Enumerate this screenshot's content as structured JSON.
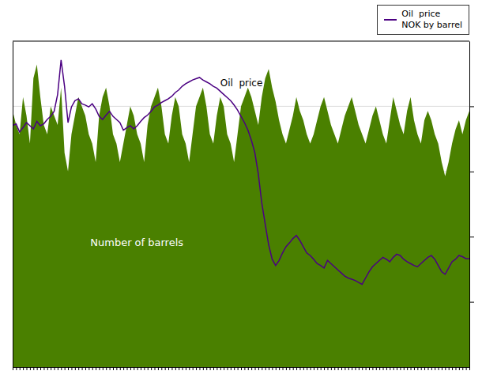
{
  "chart_data": {
    "type": "line",
    "x": [
      0,
      1,
      2,
      3,
      4,
      5,
      6,
      7,
      8,
      9,
      10,
      11,
      12,
      13,
      14,
      15,
      16,
      17,
      18,
      19,
      20,
      21,
      22,
      23,
      24,
      25,
      26,
      27,
      28,
      29,
      30,
      31,
      32,
      33,
      34,
      35,
      36,
      37,
      38,
      39,
      40,
      41,
      42,
      43,
      44,
      45,
      46,
      47,
      48,
      49,
      50,
      51,
      52,
      53,
      54,
      55,
      56,
      57,
      58,
      59,
      60,
      61,
      62,
      63,
      64,
      65,
      66,
      67,
      68,
      69,
      70,
      71,
      72,
      73,
      74,
      75,
      76,
      77,
      78,
      79,
      80,
      81,
      82,
      83,
      84,
      85,
      86,
      87,
      88,
      89,
      90,
      91,
      92,
      93,
      94,
      95,
      96,
      97,
      98,
      99,
      100,
      101,
      102,
      103,
      104,
      105,
      106,
      107,
      108,
      109,
      110,
      111,
      112,
      113,
      114,
      115,
      116,
      117,
      118,
      119,
      120,
      121,
      122,
      123,
      124,
      125,
      126,
      127,
      128,
      129,
      130,
      131,
      132
    ],
    "series": [
      {
        "name": "Number of barrels",
        "type": "area",
        "axis": "y",
        "color": "#4a8000",
        "values": [
          55,
          52,
          50,
          58,
          54,
          48,
          62,
          65,
          58,
          52,
          50,
          56,
          54,
          52,
          60,
          46,
          42,
          50,
          54,
          58,
          56,
          54,
          50,
          48,
          44,
          54,
          58,
          60,
          56,
          50,
          48,
          44,
          48,
          52,
          56,
          54,
          50,
          48,
          44,
          52,
          56,
          58,
          60,
          56,
          50,
          48,
          54,
          58,
          56,
          50,
          48,
          44,
          50,
          56,
          58,
          60,
          56,
          50,
          48,
          54,
          58,
          56,
          50,
          48,
          44,
          50,
          56,
          58,
          60,
          58,
          55,
          52,
          58,
          62,
          64,
          60,
          57,
          53,
          50,
          48,
          51,
          54,
          58,
          55,
          53,
          50,
          48,
          50,
          53,
          56,
          58,
          55,
          52,
          50,
          48,
          51,
          54,
          56,
          58,
          55,
          52,
          50,
          48,
          51,
          54,
          56,
          53,
          50,
          48,
          53,
          58,
          55,
          52,
          50,
          55,
          58,
          53,
          50,
          48,
          53,
          55,
          53,
          50,
          48,
          44,
          41,
          44,
          48,
          51,
          53,
          50,
          53,
          55
        ]
      },
      {
        "name": "Oil  price\nNOK by barrel",
        "type": "line",
        "axis": "y2",
        "color": "#4b0082",
        "values": [
          385,
          388,
          375,
          382,
          390,
          385,
          380,
          392,
          385,
          388,
          395,
          400,
          408,
          435,
          490,
          448,
          390,
          415,
          425,
          428,
          420,
          418,
          415,
          420,
          412,
          400,
          395,
          402,
          408,
          400,
          395,
          390,
          378,
          382,
          385,
          380,
          385,
          392,
          398,
          402,
          408,
          415,
          418,
          422,
          425,
          428,
          432,
          438,
          442,
          448,
          452,
          455,
          458,
          460,
          462,
          458,
          455,
          452,
          448,
          445,
          440,
          435,
          430,
          425,
          418,
          410,
          400,
          390,
          378,
          362,
          342,
          308,
          262,
          228,
          195,
          172,
          162,
          170,
          182,
          192,
          198,
          205,
          210,
          202,
          192,
          182,
          178,
          172,
          165,
          162,
          158,
          170,
          165,
          160,
          155,
          150,
          145,
          142,
          140,
          138,
          135,
          132,
          142,
          152,
          160,
          165,
          170,
          175,
          172,
          168,
          175,
          180,
          178,
          172,
          168,
          165,
          162,
          160,
          165,
          170,
          175,
          178,
          172,
          162,
          152,
          148,
          158,
          168,
          172,
          178,
          176,
          173,
          173
        ]
      }
    ],
    "xlim": [
      0,
      132
    ],
    "xticks": [
      0,
      1,
      2,
      3,
      4,
      5,
      6,
      7,
      8,
      9,
      10,
      11,
      12,
      13,
      14,
      15,
      16,
      17,
      18,
      19,
      20,
      21,
      22,
      23,
      24,
      25,
      26,
      27,
      28,
      29,
      30,
      31,
      32,
      33,
      34,
      35,
      36,
      37,
      38,
      39,
      40,
      41,
      42,
      43,
      44,
      45,
      46,
      47,
      48,
      49,
      50,
      51,
      52,
      53,
      54,
      55,
      56,
      57,
      58,
      59,
      60,
      61,
      62,
      63,
      64,
      65,
      66,
      67,
      68,
      69,
      70,
      71,
      72,
      73,
      74,
      75,
      76,
      77,
      78,
      79,
      80,
      81,
      82,
      83,
      84,
      85,
      86,
      87,
      88,
      89,
      90,
      91,
      92,
      93,
      94,
      95,
      96,
      97,
      98,
      99,
      100,
      101,
      102,
      103,
      104,
      105,
      106,
      107,
      108,
      109,
      110,
      111,
      112,
      113,
      114,
      115,
      116,
      117,
      118,
      119,
      120,
      121,
      122,
      123,
      124,
      125,
      126,
      127,
      128,
      129,
      130,
      131,
      132
    ],
    "ylim": [
      0,
      70
    ],
    "y2lim": [
      0,
      520
    ],
    "y2ticks": [
      104,
      208,
      312,
      416
    ],
    "grid": true,
    "tick_labels": false,
    "legend": "upper right",
    "annotations": [
      {
        "text": "Oil  price",
        "x": 60,
        "y": 448,
        "axis": "y2"
      }
    ]
  }
}
